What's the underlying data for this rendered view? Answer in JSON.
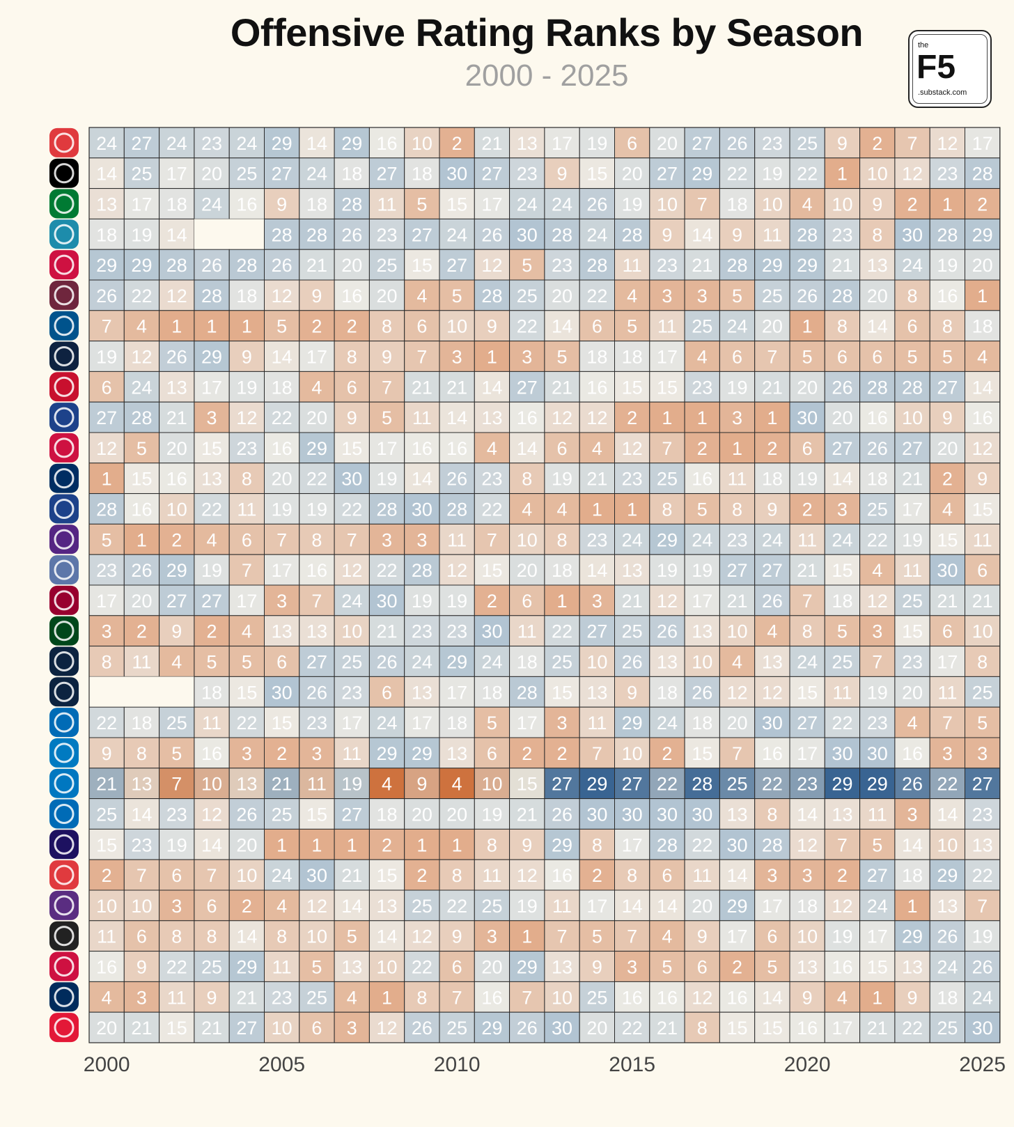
{
  "title": "Offensive Rating Ranks by Season",
  "subtitle": "2000 - 2025",
  "logo": {
    "small_top": "the",
    "main": "F5",
    "small_bottom": ".substack.com"
  },
  "chart_data": {
    "type": "heatmap",
    "title": "Offensive Rating Ranks by Season",
    "subtitle": "2000 - 2025",
    "x": [
      2000,
      2001,
      2002,
      2003,
      2004,
      2005,
      2006,
      2007,
      2008,
      2009,
      2010,
      2011,
      2012,
      2013,
      2014,
      2015,
      2016,
      2017,
      2018,
      2019,
      2020,
      2021,
      2022,
      2023,
      2024,
      2025
    ],
    "x_tick_labels": [
      "2000",
      "2005",
      "2010",
      "2015",
      "2020",
      "2025"
    ],
    "x_tick_values": [
      2000,
      2005,
      2010,
      2015,
      2020,
      2025
    ],
    "highlighted_row": 21,
    "colors": {
      "low_rank": "#c85a17",
      "mid_rank": "#e8e8e3",
      "high_rank": "#2c5f8e"
    },
    "rows": [
      {
        "team_icon": "hawks-logo",
        "color": "#e03a3e",
        "values": [
          24,
          27,
          24,
          23,
          24,
          29,
          14,
          29,
          16,
          10,
          2,
          21,
          13,
          17,
          19,
          6,
          20,
          27,
          26,
          23,
          25,
          9,
          2,
          7,
          12,
          17
        ]
      },
      {
        "team_icon": "nets-logo",
        "color": "#000000",
        "values": [
          14,
          25,
          17,
          20,
          25,
          27,
          24,
          18,
          27,
          18,
          30,
          27,
          23,
          9,
          15,
          20,
          27,
          29,
          22,
          19,
          22,
          1,
          10,
          12,
          23,
          28
        ]
      },
      {
        "team_icon": "celtics-logo",
        "color": "#007a33",
        "values": [
          13,
          17,
          18,
          24,
          16,
          9,
          18,
          28,
          11,
          5,
          15,
          17,
          24,
          24,
          26,
          19,
          10,
          7,
          18,
          10,
          4,
          10,
          9,
          2,
          1,
          2
        ]
      },
      {
        "team_icon": "hornets-logo",
        "color": "#1d8cab",
        "values": [
          18,
          19,
          14,
          null,
          null,
          28,
          28,
          26,
          23,
          27,
          24,
          26,
          30,
          28,
          24,
          28,
          9,
          14,
          9,
          11,
          28,
          23,
          8,
          30,
          28,
          29
        ]
      },
      {
        "team_icon": "bulls-logo",
        "color": "#ce1141",
        "values": [
          29,
          29,
          28,
          26,
          28,
          26,
          21,
          20,
          25,
          15,
          27,
          12,
          5,
          23,
          28,
          11,
          23,
          21,
          28,
          29,
          29,
          21,
          13,
          24,
          19,
          20
        ]
      },
      {
        "team_icon": "cavaliers-logo",
        "color": "#6f263d",
        "values": [
          26,
          22,
          12,
          28,
          18,
          12,
          9,
          16,
          20,
          4,
          5,
          28,
          25,
          20,
          22,
          4,
          3,
          3,
          5,
          25,
          26,
          28,
          20,
          8,
          16,
          1
        ]
      },
      {
        "team_icon": "mavericks-logo",
        "color": "#00538c",
        "values": [
          7,
          4,
          1,
          1,
          1,
          5,
          2,
          2,
          8,
          6,
          10,
          9,
          22,
          14,
          6,
          5,
          11,
          25,
          24,
          20,
          1,
          8,
          14,
          6,
          8,
          18
        ]
      },
      {
        "team_icon": "nuggets-logo",
        "color": "#0e2240",
        "values": [
          19,
          12,
          26,
          29,
          9,
          14,
          17,
          8,
          9,
          7,
          3,
          1,
          3,
          5,
          18,
          18,
          17,
          4,
          6,
          7,
          5,
          6,
          6,
          5,
          5,
          4
        ]
      },
      {
        "team_icon": "pistons-logo",
        "color": "#c8102e",
        "values": [
          6,
          24,
          13,
          17,
          19,
          18,
          4,
          6,
          7,
          21,
          21,
          14,
          27,
          21,
          16,
          15,
          15,
          23,
          19,
          21,
          20,
          26,
          28,
          28,
          27,
          14
        ]
      },
      {
        "team_icon": "warriors-logo",
        "color": "#1d428a",
        "values": [
          27,
          28,
          21,
          3,
          12,
          22,
          20,
          9,
          5,
          11,
          14,
          13,
          16,
          12,
          12,
          2,
          1,
          1,
          3,
          1,
          30,
          20,
          16,
          10,
          9,
          16
        ]
      },
      {
        "team_icon": "rockets-logo",
        "color": "#ce1141",
        "values": [
          12,
          5,
          20,
          15,
          23,
          16,
          29,
          15,
          17,
          16,
          16,
          4,
          14,
          6,
          4,
          12,
          7,
          2,
          1,
          2,
          6,
          27,
          26,
          27,
          20,
          12
        ]
      },
      {
        "team_icon": "pacers-logo",
        "color": "#002d62",
        "values": [
          1,
          15,
          16,
          13,
          8,
          20,
          22,
          30,
          19,
          14,
          26,
          23,
          8,
          19,
          21,
          23,
          25,
          16,
          11,
          18,
          19,
          14,
          18,
          21,
          2,
          9
        ]
      },
      {
        "team_icon": "clippers-logo",
        "color": "#1d428a",
        "values": [
          28,
          16,
          10,
          22,
          11,
          19,
          19,
          22,
          28,
          30,
          28,
          22,
          4,
          4,
          1,
          1,
          8,
          5,
          8,
          9,
          2,
          3,
          25,
          17,
          4,
          15
        ]
      },
      {
        "team_icon": "lakers-logo",
        "color": "#552583",
        "values": [
          5,
          1,
          2,
          4,
          6,
          7,
          8,
          7,
          3,
          3,
          11,
          7,
          10,
          8,
          23,
          24,
          29,
          24,
          23,
          24,
          11,
          24,
          22,
          19,
          15,
          11
        ]
      },
      {
        "team_icon": "grizzlies-logo",
        "color": "#5d76a9",
        "values": [
          23,
          26,
          29,
          19,
          7,
          17,
          16,
          12,
          22,
          28,
          12,
          15,
          20,
          18,
          14,
          13,
          19,
          19,
          27,
          27,
          21,
          15,
          4,
          11,
          30,
          6
        ]
      },
      {
        "team_icon": "heat-logo",
        "color": "#98002e",
        "values": [
          17,
          20,
          27,
          27,
          17,
          3,
          7,
          24,
          30,
          19,
          19,
          2,
          6,
          1,
          3,
          21,
          12,
          17,
          21,
          26,
          7,
          18,
          12,
          25,
          21,
          21
        ]
      },
      {
        "team_icon": "bucks-logo",
        "color": "#00471b",
        "values": [
          3,
          2,
          9,
          2,
          4,
          13,
          13,
          10,
          21,
          23,
          23,
          30,
          11,
          22,
          27,
          25,
          26,
          13,
          10,
          4,
          8,
          5,
          3,
          15,
          6,
          10
        ]
      },
      {
        "team_icon": "timberwolves-logo",
        "color": "#0c2340",
        "values": [
          8,
          11,
          4,
          5,
          5,
          6,
          27,
          25,
          26,
          24,
          29,
          24,
          18,
          25,
          10,
          26,
          13,
          10,
          4,
          13,
          24,
          25,
          7,
          23,
          17,
          8
        ]
      },
      {
        "team_icon": "pelicans-logo",
        "color": "#0c2340",
        "values": [
          null,
          null,
          null,
          18,
          15,
          30,
          26,
          23,
          6,
          13,
          17,
          18,
          28,
          15,
          13,
          9,
          18,
          26,
          12,
          12,
          15,
          11,
          19,
          20,
          11,
          25
        ]
      },
      {
        "team_icon": "knicks-logo",
        "color": "#006bb6",
        "values": [
          22,
          18,
          25,
          11,
          22,
          15,
          23,
          17,
          24,
          17,
          18,
          5,
          17,
          3,
          11,
          29,
          24,
          18,
          20,
          30,
          27,
          22,
          23,
          4,
          7,
          5
        ]
      },
      {
        "team_icon": "thunder-logo",
        "color": "#007ac1",
        "values": [
          9,
          8,
          5,
          16,
          3,
          2,
          3,
          11,
          29,
          29,
          13,
          6,
          2,
          2,
          7,
          10,
          2,
          15,
          7,
          16,
          17,
          30,
          30,
          16,
          3,
          3
        ]
      },
      {
        "team_icon": "magic-logo",
        "color": "#0077c0",
        "values": [
          21,
          13,
          7,
          10,
          13,
          21,
          11,
          19,
          4,
          9,
          4,
          10,
          15,
          27,
          29,
          27,
          22,
          28,
          25,
          22,
          23,
          29,
          29,
          26,
          22,
          27
        ]
      },
      {
        "team_icon": "76ers-logo",
        "color": "#006bb6",
        "values": [
          25,
          14,
          23,
          12,
          26,
          25,
          15,
          27,
          18,
          20,
          20,
          19,
          21,
          26,
          30,
          30,
          30,
          30,
          13,
          8,
          14,
          13,
          11,
          3,
          14,
          23
        ]
      },
      {
        "team_icon": "suns-logo",
        "color": "#1d1160",
        "values": [
          15,
          23,
          19,
          14,
          20,
          1,
          1,
          1,
          2,
          1,
          1,
          8,
          9,
          29,
          8,
          17,
          28,
          22,
          30,
          28,
          12,
          7,
          5,
          14,
          10,
          13
        ]
      },
      {
        "team_icon": "trail-blazers-logo",
        "color": "#e03a3e",
        "values": [
          2,
          7,
          6,
          7,
          10,
          24,
          30,
          21,
          15,
          2,
          8,
          11,
          12,
          16,
          2,
          8,
          6,
          11,
          14,
          3,
          3,
          2,
          27,
          18,
          29,
          22
        ]
      },
      {
        "team_icon": "kings-logo",
        "color": "#5a2d81",
        "values": [
          10,
          10,
          3,
          6,
          2,
          4,
          12,
          14,
          13,
          25,
          22,
          25,
          19,
          11,
          17,
          14,
          14,
          20,
          29,
          17,
          18,
          12,
          24,
          1,
          13,
          7
        ]
      },
      {
        "team_icon": "spurs-logo",
        "color": "#222222",
        "values": [
          11,
          6,
          8,
          8,
          14,
          8,
          10,
          5,
          14,
          12,
          9,
          3,
          1,
          7,
          5,
          7,
          4,
          9,
          17,
          6,
          10,
          19,
          17,
          29,
          26,
          19
        ]
      },
      {
        "team_icon": "raptors-logo",
        "color": "#ce1141",
        "values": [
          16,
          9,
          22,
          25,
          29,
          11,
          5,
          13,
          10,
          22,
          6,
          20,
          29,
          13,
          9,
          3,
          5,
          6,
          2,
          5,
          13,
          16,
          15,
          13,
          24,
          26
        ]
      },
      {
        "team_icon": "jazz-logo",
        "color": "#002b5c",
        "values": [
          4,
          3,
          11,
          9,
          21,
          23,
          25,
          4,
          1,
          8,
          7,
          16,
          7,
          10,
          25,
          16,
          16,
          12,
          16,
          14,
          9,
          4,
          1,
          9,
          18,
          24
        ]
      },
      {
        "team_icon": "wizards-logo",
        "color": "#e31837",
        "values": [
          20,
          21,
          15,
          21,
          27,
          10,
          6,
          3,
          12,
          26,
          25,
          29,
          26,
          30,
          20,
          22,
          21,
          8,
          15,
          15,
          16,
          17,
          21,
          22,
          25,
          30
        ]
      }
    ]
  }
}
